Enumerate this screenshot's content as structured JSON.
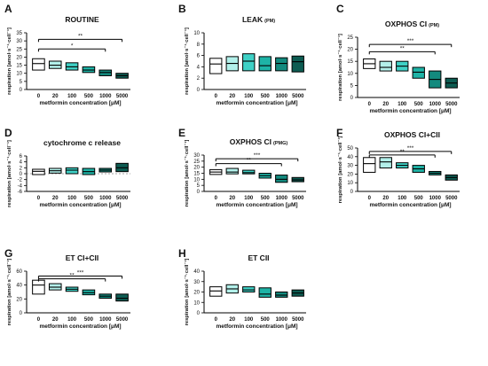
{
  "x_axis_label": "metformin concentration [μM]",
  "categories": [
    "0",
    "20",
    "100",
    "500",
    "1000",
    "5000"
  ],
  "box_colors": [
    "#ffffff",
    "#b3f0ea",
    "#3fd1c6",
    "#1eb3a6",
    "#138a7e",
    "#0d5c52"
  ],
  "chart_data": [
    {
      "type": "box",
      "letter": "A",
      "title": "ROUTINE",
      "title_suffix": "",
      "ylabel": "respiration [amol·s⁻¹·cell⁻¹]",
      "ylim": [
        0,
        35
      ],
      "yticks": [
        0,
        5,
        10,
        15,
        20,
        25,
        30,
        35
      ],
      "boxes": [
        {
          "category": "0",
          "q1": 12,
          "median": 16,
          "q3": 19
        },
        {
          "category": "20",
          "q1": 13,
          "median": 15,
          "q3": 17.5
        },
        {
          "category": "100",
          "q1": 12,
          "median": 14,
          "q3": 16.5
        },
        {
          "category": "500",
          "q1": 10.5,
          "median": 12,
          "q3": 14
        },
        {
          "category": "1000",
          "q1": 8.5,
          "median": 10.5,
          "q3": 12
        },
        {
          "category": "5000",
          "q1": 7,
          "median": 8.5,
          "q3": 10
        }
      ],
      "significance": [
        {
          "from": "0",
          "to": "5000",
          "label": "**",
          "y": 31
        },
        {
          "from": "0",
          "to": "1000",
          "label": "*",
          "y": 25
        }
      ],
      "baseline": null
    },
    {
      "type": "box",
      "letter": "B",
      "title": "LEAK",
      "title_suffix": "(PM)",
      "ylabel": "respiration [amol·s⁻¹·cell⁻¹]",
      "ylim": [
        0,
        10
      ],
      "yticks": [
        0,
        2,
        4,
        6,
        8,
        10
      ],
      "boxes": [
        {
          "category": "0",
          "q1": 2.8,
          "median": 4.5,
          "q3": 5.5
        },
        {
          "category": "20",
          "q1": 3.3,
          "median": 4.6,
          "q3": 5.8
        },
        {
          "category": "100",
          "q1": 3.3,
          "median": 5,
          "q3": 6.3
        },
        {
          "category": "500",
          "q1": 3.3,
          "median": 4.2,
          "q3": 5.8
        },
        {
          "category": "1000",
          "q1": 3.3,
          "median": 4.6,
          "q3": 5.6
        },
        {
          "category": "5000",
          "q1": 3.1,
          "median": 4.9,
          "q3": 5.9
        }
      ],
      "significance": [],
      "baseline": null
    },
    {
      "type": "box",
      "letter": "C",
      "title": "OXPHOS CI",
      "title_suffix": "(PM)",
      "ylabel": "respiration [amol·s⁻¹·cell⁻¹]",
      "ylim": [
        0,
        25
      ],
      "yticks": [
        0,
        5,
        10,
        15,
        20,
        25
      ],
      "boxes": [
        {
          "category": "0",
          "q1": 12,
          "median": 14,
          "q3": 16
        },
        {
          "category": "20",
          "q1": 11,
          "median": 12.5,
          "q3": 15
        },
        {
          "category": "100",
          "q1": 11,
          "median": 13,
          "q3": 15
        },
        {
          "category": "500",
          "q1": 8,
          "median": 10.5,
          "q3": 12.5
        },
        {
          "category": "1000",
          "q1": 4,
          "median": 7.5,
          "q3": 11
        },
        {
          "category": "5000",
          "q1": 4,
          "median": 6,
          "q3": 8
        }
      ],
      "significance": [
        {
          "from": "0",
          "to": "5000",
          "label": "***",
          "y": 22
        },
        {
          "from": "0",
          "to": "1000",
          "label": "**",
          "y": 19
        }
      ],
      "baseline": null
    },
    {
      "type": "box",
      "letter": "D",
      "title": "cytochrome c release",
      "title_suffix": "",
      "ylabel": "respiration [amol·s⁻¹·cell⁻¹]",
      "ylim": [
        -6,
        6
      ],
      "yticks": [
        -6,
        -4,
        -2,
        0,
        2,
        4,
        6
      ],
      "boxes": [
        {
          "category": "0",
          "q1": -0.3,
          "median": 0.8,
          "q3": 1.5
        },
        {
          "category": "20",
          "q1": 0.2,
          "median": 1,
          "q3": 1.8
        },
        {
          "category": "100",
          "q1": 0,
          "median": 1.2,
          "q3": 2
        },
        {
          "category": "500",
          "q1": -0.3,
          "median": 0.7,
          "q3": 1.8
        },
        {
          "category": "1000",
          "q1": 0.6,
          "median": 1.2,
          "q3": 1.8
        },
        {
          "category": "5000",
          "q1": 0.7,
          "median": 2,
          "q3": 3.5
        }
      ],
      "significance": [],
      "baseline": 0
    },
    {
      "type": "box",
      "letter": "E",
      "title": "OXPHOS CI",
      "title_suffix": "(PMG)",
      "ylabel": "respiration [amol·s⁻¹·cell⁻¹]",
      "ylim": [
        0,
        30
      ],
      "yticks": [
        0,
        5,
        10,
        15,
        20,
        25,
        30
      ],
      "boxes": [
        {
          "category": "0",
          "q1": 14,
          "median": 16,
          "q3": 18
        },
        {
          "category": "20",
          "q1": 14.5,
          "median": 16,
          "q3": 19
        },
        {
          "category": "100",
          "q1": 14.5,
          "median": 15.5,
          "q3": 17.5
        },
        {
          "category": "500",
          "q1": 11,
          "median": 13,
          "q3": 15
        },
        {
          "category": "1000",
          "q1": 7.5,
          "median": 10,
          "q3": 13.5
        },
        {
          "category": "5000",
          "q1": 8,
          "median": 9.5,
          "q3": 11.5
        }
      ],
      "significance": [
        {
          "from": "0",
          "to": "5000",
          "label": "***",
          "y": 27
        },
        {
          "from": "0",
          "to": "1000",
          "label": "**",
          "y": 23
        }
      ],
      "baseline": null
    },
    {
      "type": "box",
      "letter": "F",
      "title": "OXPHOS CI+CII",
      "title_suffix": "",
      "ylabel": "respiration [amol·s⁻¹·cell⁻¹]",
      "ylim": [
        0,
        50
      ],
      "yticks": [
        0,
        10,
        20,
        30,
        40,
        50
      ],
      "boxes": [
        {
          "category": "0",
          "q1": 22,
          "median": 32,
          "q3": 39
        },
        {
          "category": "20",
          "q1": 27,
          "median": 34,
          "q3": 39
        },
        {
          "category": "100",
          "q1": 27,
          "median": 30,
          "q3": 33
        },
        {
          "category": "500",
          "q1": 22,
          "median": 26,
          "q3": 30
        },
        {
          "category": "1000",
          "q1": 19,
          "median": 21,
          "q3": 23
        },
        {
          "category": "5000",
          "q1": 13,
          "median": 16,
          "q3": 19
        }
      ],
      "significance": [
        {
          "from": "0",
          "to": "5000",
          "label": "***",
          "y": 46
        },
        {
          "from": "0",
          "to": "1000",
          "label": "**",
          "y": 42
        }
      ],
      "baseline": null
    },
    {
      "type": "box",
      "letter": "G",
      "title": "ET CI+CII",
      "title_suffix": "",
      "ylabel": "respiration [amol·s⁻¹·cell⁻¹]",
      "ylim": [
        0,
        60
      ],
      "yticks": [
        0,
        20,
        40,
        60
      ],
      "boxes": [
        {
          "category": "0",
          "q1": 27,
          "median": 40,
          "q3": 47
        },
        {
          "category": "20",
          "q1": 33,
          "median": 37,
          "q3": 42
        },
        {
          "category": "100",
          "q1": 31,
          "median": 34,
          "q3": 37
        },
        {
          "category": "500",
          "q1": 26,
          "median": 29,
          "q3": 33
        },
        {
          "category": "1000",
          "q1": 21,
          "median": 24,
          "q3": 27
        },
        {
          "category": "5000",
          "q1": 17,
          "median": 21,
          "q3": 27
        }
      ],
      "significance": [
        {
          "from": "0",
          "to": "5000",
          "label": "***",
          "y": 53
        },
        {
          "from": "0",
          "to": "1000",
          "label": "**",
          "y": 49
        }
      ],
      "baseline": null
    },
    {
      "type": "box",
      "letter": "H",
      "title": "ET CII",
      "title_suffix": "",
      "ylabel": "respiration [amol·s⁻¹·cell⁻¹]",
      "ylim": [
        0,
        40
      ],
      "yticks": [
        0,
        10,
        20,
        30,
        40
      ],
      "boxes": [
        {
          "category": "0",
          "q1": 16,
          "median": 21,
          "q3": 25
        },
        {
          "category": "20",
          "q1": 19,
          "median": 23,
          "q3": 27
        },
        {
          "category": "100",
          "q1": 20,
          "median": 22,
          "q3": 25
        },
        {
          "category": "500",
          "q1": 15,
          "median": 18,
          "q3": 24
        },
        {
          "category": "1000",
          "q1": 15,
          "median": 17,
          "q3": 20
        },
        {
          "category": "5000",
          "q1": 16,
          "median": 19,
          "q3": 22
        }
      ],
      "significance": [],
      "baseline": null
    }
  ]
}
